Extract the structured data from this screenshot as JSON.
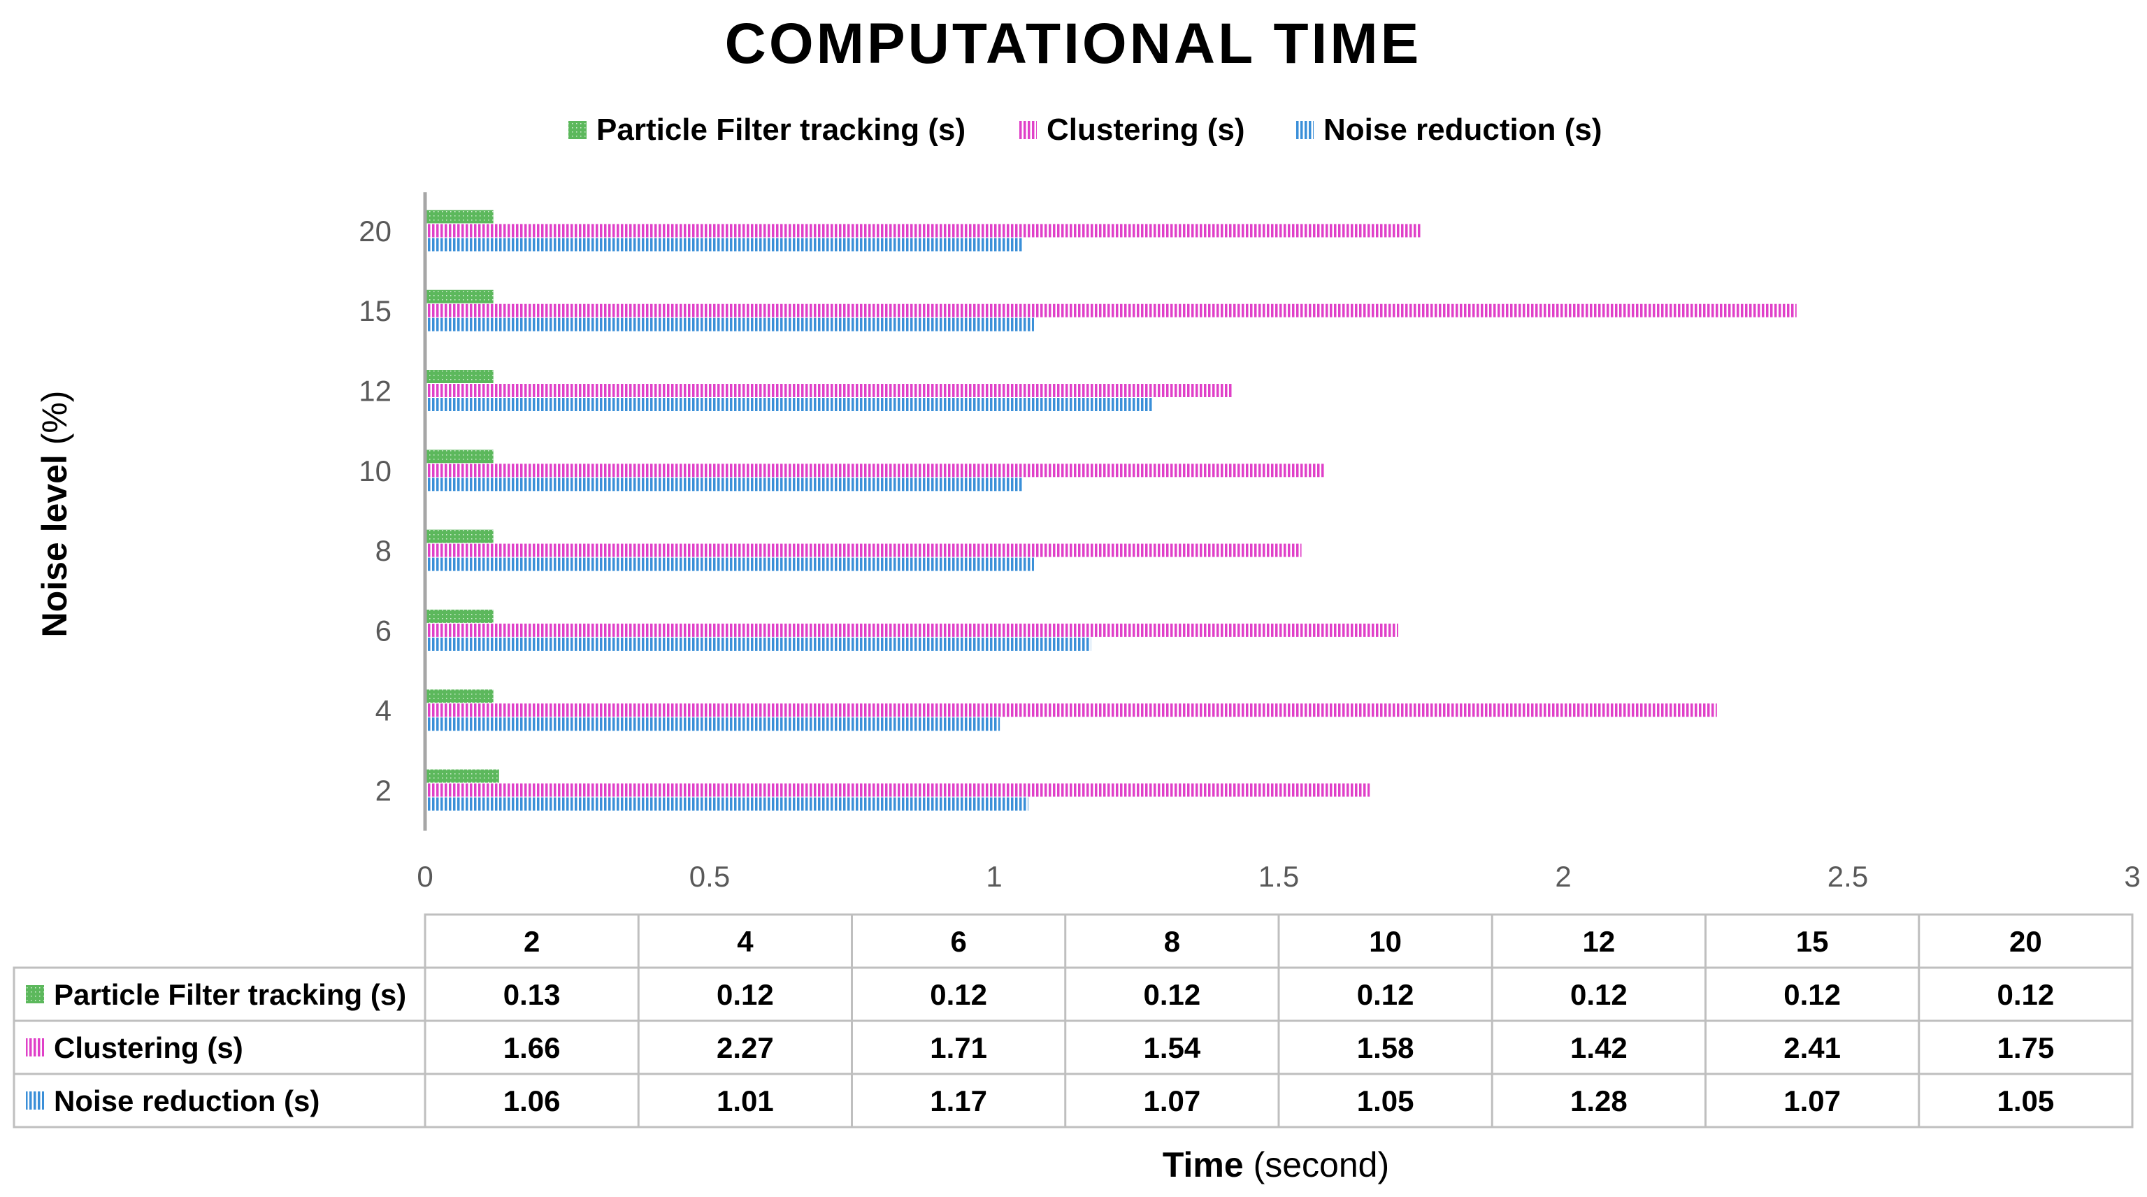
{
  "chart_data": {
    "type": "bar",
    "orientation": "horizontal",
    "title": "COMPUTATIONAL TIME",
    "categories": [
      "2",
      "4",
      "6",
      "8",
      "10",
      "12",
      "15",
      "20"
    ],
    "series": [
      {
        "name": "Particle Filter tracking (s)",
        "color": "#5cb85c",
        "pattern": "dotted",
        "values": [
          0.13,
          0.12,
          0.12,
          0.12,
          0.12,
          0.12,
          0.12,
          0.12
        ]
      },
      {
        "name": "Clustering (s)",
        "color": "#e040c8",
        "pattern": "vertical-lines",
        "values": [
          1.66,
          2.27,
          1.71,
          1.54,
          1.58,
          1.42,
          2.41,
          1.75
        ]
      },
      {
        "name": "Noise reduction (s)",
        "color": "#3a8fd8",
        "pattern": "vertical-lines",
        "values": [
          1.06,
          1.01,
          1.17,
          1.07,
          1.05,
          1.28,
          1.07,
          1.05
        ]
      }
    ],
    "xlim": [
      0,
      3
    ],
    "xticks": [
      "0",
      "0.5",
      "1",
      "1.5",
      "2",
      "2.5",
      "3"
    ],
    "xlabel_bold": "Time",
    "xlabel_rest": " (second)",
    "ylabel_bold": "Noise level",
    "ylabel_rest": " (%)",
    "legend": "top",
    "data_table": true,
    "grid": false
  }
}
